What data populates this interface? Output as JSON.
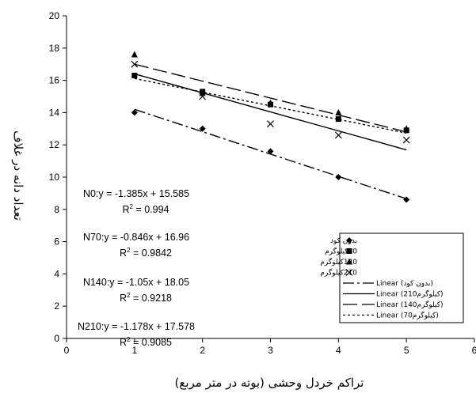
{
  "chart_data": {
    "type": "scatter",
    "xlabel": "تراکم خردل وحشی (بوته در متر مربع)",
    "ylabel": "تعداد دانه در غلاف",
    "xlim": [
      0,
      6
    ],
    "ylim": [
      0,
      20
    ],
    "xticks": [
      "0",
      "1",
      "2",
      "3",
      "4",
      "5",
      "6"
    ],
    "yticks": [
      "0",
      "2",
      "4",
      "6",
      "8",
      "10",
      "12",
      "14",
      "16",
      "18",
      "20"
    ],
    "grid": false,
    "legend_position": "bottom-right",
    "series": [
      {
        "name": "بدون کود",
        "marker": "diamond",
        "x": [
          1,
          2,
          3,
          4,
          5
        ],
        "y": [
          14.0,
          13.0,
          11.6,
          10.0,
          8.6
        ]
      },
      {
        "name": "70کیلوگرم",
        "marker": "square",
        "x": [
          1,
          2,
          3,
          4,
          5
        ],
        "y": [
          16.3,
          15.3,
          14.5,
          13.6,
          12.9
        ]
      },
      {
        "name": "140کیلوگرم",
        "marker": "triangle",
        "x": [
          1,
          2,
          3,
          4,
          5
        ],
        "y": [
          17.6,
          15.2,
          14.6,
          14.0,
          13.0
        ]
      },
      {
        "name": "210کیلوگرم",
        "marker": "x",
        "x": [
          1,
          2,
          3,
          4,
          5
        ],
        "y": [
          17.0,
          15.0,
          13.3,
          12.6,
          12.3
        ]
      }
    ],
    "trendlines": [
      {
        "name": "Linear (بدون کود)",
        "style": "dash-dot",
        "slope": -1.385,
        "intercept": 15.585,
        "x_range": [
          1,
          5
        ]
      },
      {
        "name": "Linear (210کیلوگرم)",
        "style": "solid",
        "slope": -1.178,
        "intercept": 17.578,
        "x_range": [
          1,
          5
        ]
      },
      {
        "name": "Linear (140کیلوگرم)",
        "style": "long-dash",
        "slope": -1.05,
        "intercept": 18.05,
        "x_range": [
          1,
          5
        ]
      },
      {
        "name": "Linear (70کیلوگرم)",
        "style": "dotted",
        "slope": -0.846,
        "intercept": 16.96,
        "x_range": [
          1,
          5
        ]
      }
    ],
    "annotations": [
      {
        "equation": "N0:y = -1.385x + 15.585",
        "r2_value": "0.994"
      },
      {
        "equation": "N70:y = -0.846x + 16.96",
        "r2_value": "0.9842"
      },
      {
        "equation": "N140:y = -1.05x + 18.05",
        "r2_value": "0.9218"
      },
      {
        "equation": "N210:y = -1.178x + 17.578",
        "r2_value": "0.9085"
      }
    ]
  }
}
